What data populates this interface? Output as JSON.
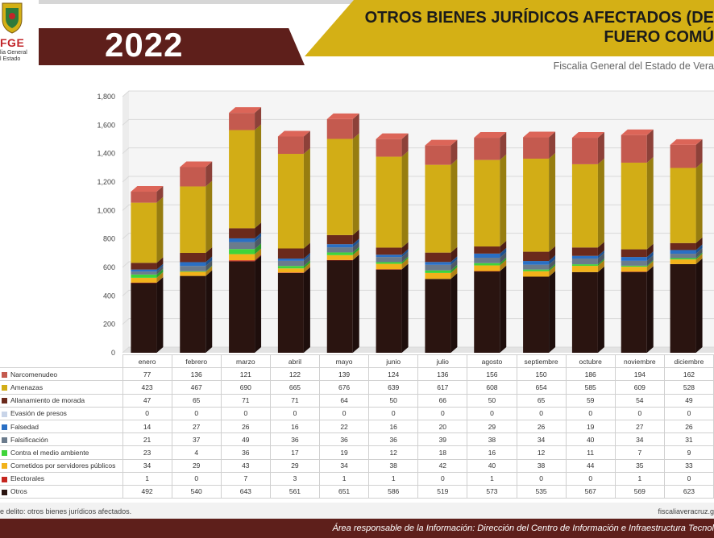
{
  "header": {
    "logo_brand": "FGE",
    "logo_line1": "lia General",
    "logo_line2": "l Estado",
    "year": "2022",
    "title_line1": "OTROS BIENES JURÍDICOS AFECTADOS (DE",
    "title_line2": "FUERO COMÚ",
    "subtitle": "Fiscalia General del Estado de Vera"
  },
  "colors": {
    "Narcomenudeo": "#c45a4f",
    "Amenazas": "#d2ad16",
    "Allanamiento de morada": "#6b2a1c",
    "Evasión de presos": "#c8d4e8",
    "Falsedad": "#2a6fc4",
    "Falsificación": "#6b7b8c",
    "Contra el medio ambiente": "#3fd43a",
    "Cometidos por servidores públicos": "#f2b21a",
    "Electorales": "#c5261f",
    "Otros": "#2a1410"
  },
  "chart_data": {
    "type": "bar",
    "stacked": true,
    "categories": [
      "enero",
      "febrero",
      "marzo",
      "abril",
      "mayo",
      "junio",
      "julio",
      "agosto",
      "septiembre",
      "octubre",
      "noviembre",
      "diciembre"
    ],
    "ylim": [
      0,
      1800
    ],
    "yticks": [
      "0",
      "200",
      "400",
      "600",
      "800",
      "1,000",
      "1,200",
      "1,400",
      "1,600",
      "1,800"
    ],
    "grid": true,
    "series": [
      {
        "name": "Narcomenudeo",
        "values": [
          77,
          136,
          121,
          122,
          139,
          124,
          136,
          156,
          150,
          186,
          194,
          162
        ]
      },
      {
        "name": "Amenazas",
        "values": [
          423,
          467,
          690,
          665,
          676,
          639,
          617,
          608,
          654,
          585,
          609,
          528
        ]
      },
      {
        "name": "Allanamiento de morada",
        "values": [
          47,
          65,
          71,
          71,
          64,
          50,
          66,
          50,
          65,
          59,
          54,
          49
        ]
      },
      {
        "name": "Evasión de presos",
        "values": [
          0,
          0,
          0,
          0,
          0,
          0,
          0,
          0,
          0,
          0,
          0,
          0
        ]
      },
      {
        "name": "Falsedad",
        "values": [
          14,
          27,
          26,
          16,
          22,
          16,
          20,
          29,
          26,
          19,
          27,
          26
        ]
      },
      {
        "name": "Falsificación",
        "values": [
          21,
          37,
          49,
          36,
          36,
          36,
          39,
          38,
          34,
          40,
          34,
          31
        ]
      },
      {
        "name": "Contra el medio ambiente",
        "values": [
          23,
          4,
          36,
          17,
          19,
          12,
          18,
          16,
          12,
          11,
          7,
          9
        ]
      },
      {
        "name": "Cometidos por servidores públicos",
        "values": [
          34,
          29,
          43,
          29,
          34,
          38,
          42,
          40,
          38,
          44,
          35,
          33
        ]
      },
      {
        "name": "Electorales",
        "values": [
          1,
          0,
          7,
          3,
          1,
          1,
          0,
          1,
          0,
          0,
          1,
          0
        ]
      },
      {
        "name": "Otros",
        "values": [
          492,
          540,
          643,
          561,
          651,
          586,
          519,
          573,
          535,
          567,
          569,
          623
        ]
      }
    ]
  },
  "footer": {
    "note": "e delito: otros bienes jurídicos afectados.",
    "site": "fiscaliaveracruz.g",
    "responsible": "Área responsable de la Información: Dirección del Centro de Información e Infraestructura Tecnol"
  }
}
